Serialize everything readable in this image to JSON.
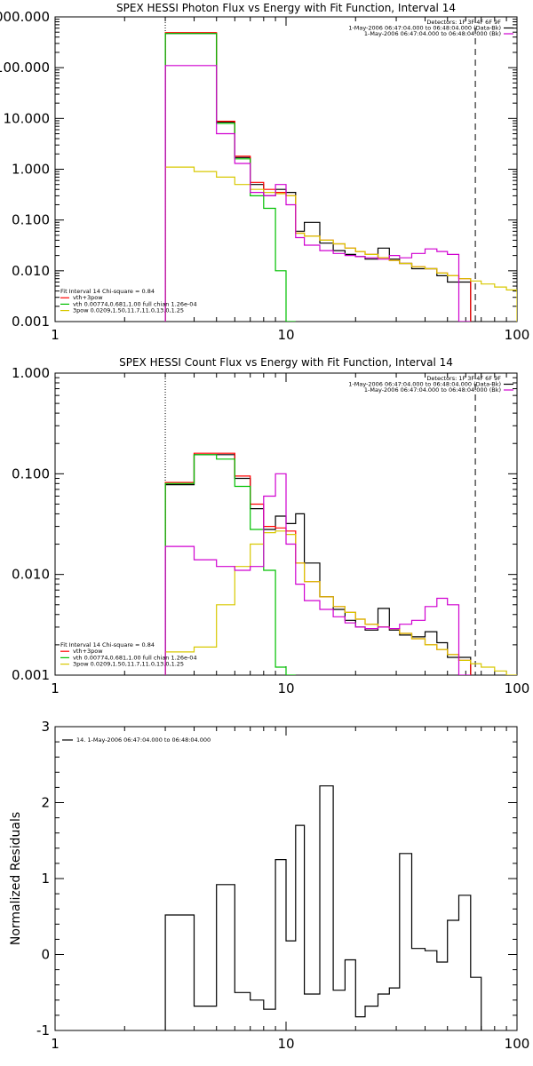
{
  "chart_data": [
    {
      "type": "line",
      "title": "SPEX HESSI Photon Flux vs Energy with Fit Function, Interval 14",
      "xscale": "log",
      "yscale": "log",
      "xlim": [
        1,
        100
      ],
      "ylim": [
        0.001,
        1000
      ],
      "x_ticks": [
        "1",
        "10",
        "100"
      ],
      "y_ticks": [
        "0.001",
        "0.010",
        "0.100",
        "1.000",
        "10.000",
        "100.000",
        "1000.000"
      ],
      "y_tick_values": [
        0.001,
        0.01,
        0.1,
        1,
        10,
        100,
        1000
      ],
      "x_tick_values": [
        1,
        10,
        100
      ],
      "header": [
        "Detectors: 1F 3F 4F 6F 9F",
        "1-May-2006 06:47:04.000 to 06:48:04.000 (Data-Bk)",
        "1-May-2006 06:47:04.000 to 06:48:04.000 (Bk)"
      ],
      "fit_labels": [
        "Fit Interval 14   Chi-square = 0.84",
        "vth+3pow",
        "vth 0.00774,0.681,1.00  full chian 1.26e-04",
        "3pow 0.0209,1.50,11.7,11.0,13.0,1.25"
      ],
      "fit_colors": [
        "#000000",
        "#ff0000",
        "#00c000",
        "#d8c800"
      ],
      "edges": [
        3,
        4,
        5,
        6,
        7,
        8,
        9,
        10,
        11,
        12,
        14,
        16,
        18,
        20,
        22,
        25,
        28,
        31,
        35,
        40,
        45,
        50,
        56,
        63,
        70,
        80,
        90,
        100
      ],
      "markers": {
        "dotted_x": 3,
        "dashed_x": 66
      },
      "series": [
        {
          "color": "#000000",
          "range": [
            0,
            24
          ],
          "values": [
            470,
            470,
            8.5,
            1.7,
            0.5,
            0.3,
            0.4,
            0.35,
            0.06,
            0.09,
            0.035,
            0.025,
            0.021,
            0.019,
            0.017,
            0.028,
            0.017,
            0.014,
            0.011,
            0.011,
            0.008,
            0.006,
            0.006
          ]
        },
        {
          "color": "#ff0000",
          "range": [
            0,
            23
          ],
          "values": [
            490,
            490,
            8.8,
            1.8,
            0.55,
            0.4,
            0.35,
            0.3,
            0.055,
            0.048,
            0.04,
            0.034,
            0.028,
            0.024,
            0.021,
            0.018,
            0.016,
            0.014,
            0.012,
            0.011,
            0.009,
            0.008,
            0.007
          ]
        },
        {
          "color": "#00c000",
          "range": [
            0,
            9
          ],
          "values": [
            470,
            470,
            8.0,
            1.6,
            0.3,
            0.17,
            0.01,
            0.001
          ]
        },
        {
          "color": "#d8c800",
          "range": [
            0,
            27
          ],
          "values": [
            1.1,
            0.9,
            0.7,
            0.5,
            0.4,
            0.35,
            0.33,
            0.3,
            0.055,
            0.048,
            0.04,
            0.034,
            0.028,
            0.024,
            0.021,
            0.018,
            0.016,
            0.014,
            0.012,
            0.011,
            0.009,
            0.008,
            0.007,
            0.0063,
            0.0055,
            0.0048,
            0.0042
          ]
        },
        {
          "color": "#d000d0",
          "range": [
            0,
            24
          ],
          "values": [
            110,
            110,
            5.0,
            1.3,
            0.35,
            0.3,
            0.5,
            0.2,
            0.045,
            0.032,
            0.025,
            0.022,
            0.02,
            0.019,
            0.018,
            0.017,
            0.02,
            0.018,
            0.022,
            0.027,
            0.024,
            0.021,
            0.001
          ]
        }
      ]
    },
    {
      "type": "line",
      "title": "SPEX HESSI Count Flux vs Energy with Fit Function, Interval 14",
      "xscale": "log",
      "yscale": "log",
      "xlim": [
        1,
        100
      ],
      "ylim": [
        0.001,
        1
      ],
      "x_ticks": [
        "1",
        "10",
        "100"
      ],
      "y_ticks": [
        "0.001",
        "0.010",
        "0.100",
        "1.000"
      ],
      "y_tick_values": [
        0.001,
        0.01,
        0.1,
        1
      ],
      "x_tick_values": [
        1,
        10,
        100
      ],
      "header": [
        "Detectors: 1F 3F 4F 6F 9F",
        "1-May-2006 06:47:04.000 to 06:48:04.000 (Data-Bk)",
        "1-May-2006 06:47:04.000 to 06:48:04.000 (Bk)"
      ],
      "fit_labels": [
        "Fit Interval 14   Chi-square = 0.84",
        "vth+3pow",
        "vth 0.00774,0.681,1.00  full chian 1.26e-04",
        "3pow 0.0209,1.50,11.7,11.0,13.0,1.25"
      ],
      "fit_colors": [
        "#000000",
        "#ff0000",
        "#00c000",
        "#d8c800"
      ],
      "edges": [
        3,
        4,
        5,
        6,
        7,
        8,
        9,
        10,
        11,
        12,
        14,
        16,
        18,
        20,
        22,
        25,
        28,
        31,
        35,
        40,
        45,
        50,
        56,
        63,
        70,
        80,
        90,
        100
      ],
      "markers": {
        "dotted_x": 3,
        "dashed_x": 66
      },
      "series": [
        {
          "color": "#000000",
          "range": [
            0,
            24
          ],
          "values": [
            0.078,
            0.155,
            0.155,
            0.09,
            0.045,
            0.028,
            0.038,
            0.032,
            0.04,
            0.013,
            0.006,
            0.0045,
            0.0035,
            0.003,
            0.0028,
            0.0046,
            0.0028,
            0.0025,
            0.0024,
            0.0027,
            0.0021,
            0.0015,
            0.0015
          ]
        },
        {
          "color": "#ff0000",
          "range": [
            0,
            24
          ],
          "values": [
            0.082,
            0.16,
            0.16,
            0.095,
            0.05,
            0.03,
            0.029,
            0.027,
            0.013,
            0.0085,
            0.006,
            0.0048,
            0.0042,
            0.0036,
            0.0032,
            0.003,
            0.0029,
            0.0026,
            0.0023,
            0.002,
            0.0018,
            0.0016,
            0.0014
          ]
        },
        {
          "color": "#00c000",
          "range": [
            0,
            9
          ],
          "values": [
            0.08,
            0.155,
            0.14,
            0.075,
            0.028,
            0.011,
            0.0012,
            0.001
          ]
        },
        {
          "color": "#d8c800",
          "range": [
            0,
            27
          ],
          "values": [
            0.0017,
            0.0019,
            0.005,
            0.012,
            0.02,
            0.026,
            0.027,
            0.025,
            0.013,
            0.0085,
            0.006,
            0.0048,
            0.0042,
            0.0036,
            0.0032,
            0.003,
            0.0029,
            0.0026,
            0.0023,
            0.002,
            0.0018,
            0.0016,
            0.0014,
            0.0013,
            0.0012,
            0.0011,
            0.001
          ]
        },
        {
          "color": "#d000d0",
          "range": [
            0,
            24
          ],
          "values": [
            0.019,
            0.014,
            0.012,
            0.011,
            0.012,
            0.06,
            0.1,
            0.02,
            0.008,
            0.0055,
            0.0045,
            0.0038,
            0.0033,
            0.003,
            0.0029,
            0.003,
            0.0029,
            0.0032,
            0.0035,
            0.0048,
            0.0058,
            0.005,
            0.001
          ]
        }
      ]
    },
    {
      "type": "line",
      "title": "",
      "ylabel": "Normalized Residuals",
      "xscale": "log",
      "yscale": "linear",
      "xlim": [
        1,
        100
      ],
      "ylim": [
        -1,
        3
      ],
      "x_ticks": [
        "1",
        "10",
        "100"
      ],
      "y_ticks": [
        "-1",
        "0",
        "1",
        "2",
        "3"
      ],
      "y_tick_values": [
        -1,
        0,
        1,
        2,
        3
      ],
      "x_tick_values": [
        1,
        10,
        100
      ],
      "legend": "14.  1-May-2006 06:47:04.000 to 06:48:04.000",
      "edges": [
        3,
        4,
        5,
        6,
        7,
        8,
        9,
        10,
        11,
        12,
        14,
        16,
        18,
        20,
        22,
        25,
        28,
        31,
        35,
        40,
        45,
        50,
        56,
        63,
        70
      ],
      "series": [
        {
          "color": "#000000",
          "range": [
            0,
            24
          ],
          "values": [
            0.52,
            -0.68,
            0.92,
            -0.5,
            -0.6,
            -0.72,
            1.25,
            0.18,
            1.7,
            -0.52,
            2.22,
            -0.47,
            -0.07,
            -0.82,
            -0.68,
            -0.52,
            -0.44,
            1.33,
            0.08,
            0.05,
            -0.1,
            0.45,
            0.78,
            -0.3
          ]
        }
      ]
    }
  ]
}
